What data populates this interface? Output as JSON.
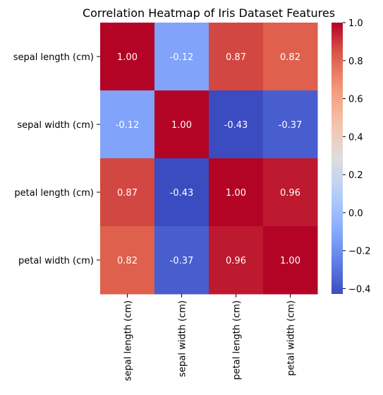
{
  "chart_data": {
    "type": "heatmap",
    "title": "Correlation Heatmap of Iris Dataset Features",
    "rows": [
      "sepal length (cm)",
      "sepal width (cm)",
      "petal length (cm)",
      "petal width (cm)"
    ],
    "columns": [
      "sepal length (cm)",
      "sepal width (cm)",
      "petal length (cm)",
      "petal width (cm)"
    ],
    "values": [
      [
        1.0,
        -0.12,
        0.87,
        0.82
      ],
      [
        -0.12,
        1.0,
        -0.43,
        -0.37
      ],
      [
        0.87,
        -0.43,
        1.0,
        0.96
      ],
      [
        0.82,
        -0.37,
        0.96,
        1.0
      ]
    ],
    "cell_labels": [
      [
        "1.00",
        "-0.12",
        "0.87",
        "0.82"
      ],
      [
        "-0.12",
        "1.00",
        "-0.43",
        "-0.37"
      ],
      [
        "0.87",
        "-0.43",
        "1.00",
        "0.96"
      ],
      [
        "0.82",
        "-0.37",
        "0.96",
        "1.00"
      ]
    ],
    "colormap": "coolwarm",
    "color_range": [
      -0.428,
      1.0
    ],
    "colorbar": {
      "ticks": [
        1.0,
        0.8,
        0.6,
        0.4,
        0.2,
        0.0,
        -0.2,
        -0.4
      ],
      "tick_labels": [
        "1.0",
        "0.8",
        "0.6",
        "0.4",
        "0.2",
        "0.0",
        "−0.2",
        "−0.4"
      ]
    },
    "grid": false,
    "xlabel": "",
    "ylabel": ""
  }
}
